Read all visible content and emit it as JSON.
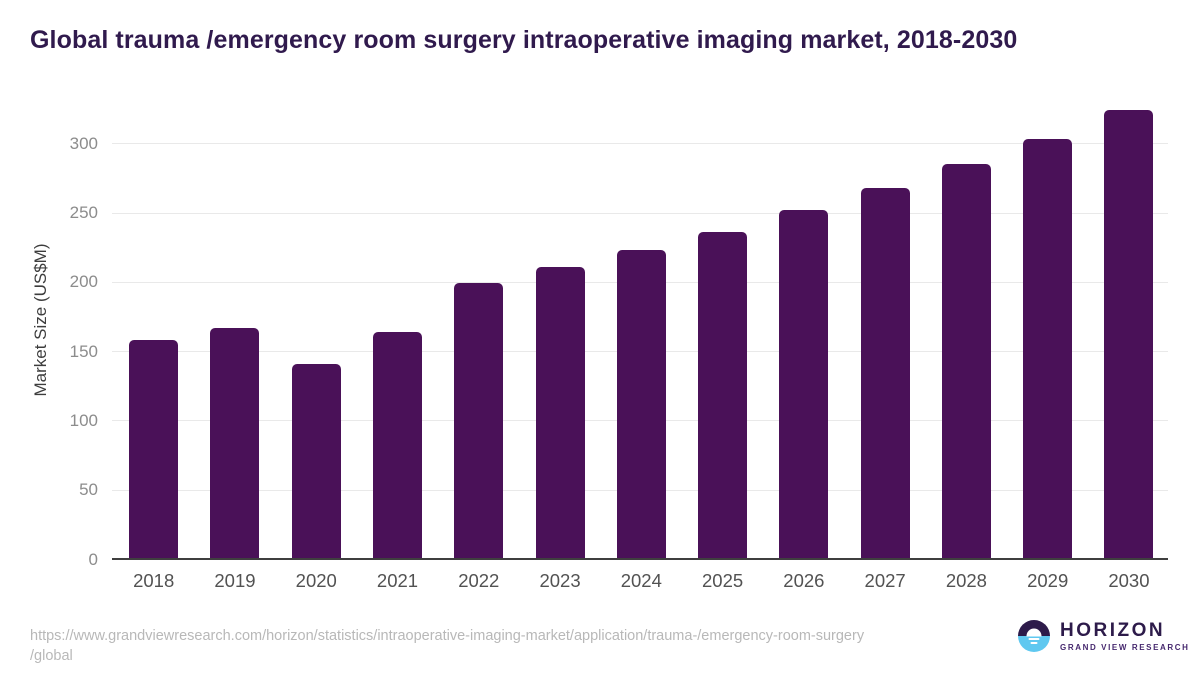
{
  "title": "Global trauma /emergency room surgery intraoperative imaging market, 2018-2030",
  "chart_data": {
    "type": "bar",
    "title": "Global trauma /emergency room surgery intraoperative imaging market, 2018-2030",
    "categories": [
      "2018",
      "2019",
      "2020",
      "2021",
      "2022",
      "2023",
      "2024",
      "2025",
      "2026",
      "2027",
      "2028",
      "2029",
      "2030"
    ],
    "values": [
      158,
      167,
      141,
      164,
      199,
      211,
      223,
      236,
      252,
      268,
      285,
      303,
      324
    ],
    "xlabel": "",
    "ylabel": "Market Size (US$M)",
    "yticks": [
      0,
      50,
      100,
      150,
      200,
      250,
      300
    ],
    "ylim": [
      0,
      325
    ],
    "grid": true,
    "legend": "none",
    "bar_color": "#4a1158"
  },
  "footer": {
    "source_line1": "https://www.grandviewresearch.com/horizon/statistics/intraoperative-imaging-market/application/trauma-/emergency-room-surgery",
    "source_line2": "/global",
    "logo_name": "HORIZON",
    "logo_subtitle": "GRAND VIEW RESEARCH"
  },
  "colors": {
    "bar": "#4a1158",
    "title_text": "#301a4d",
    "gridline": "#e9e9e9",
    "axis_line": "#3f3f3f",
    "y_tick_text": "#8c8c8c",
    "x_tick_text": "#525252",
    "footer_text": "#b8b8b8",
    "logo_purple": "#2d1b4a",
    "logo_blue": "#5fc8f0"
  }
}
